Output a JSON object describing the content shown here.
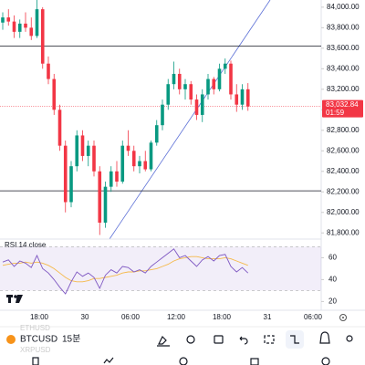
{
  "chart_data": {
    "type": "candlestick",
    "open": [
      83850,
      83900,
      83860,
      83760,
      83840,
      83800,
      83720,
      83980,
      83450,
      83300,
      83000,
      82650,
      82100,
      82450,
      82750,
      82550,
      82650,
      82400,
      81900,
      82250,
      82400,
      82300,
      82650,
      82600,
      82450,
      82500,
      82420,
      82680,
      82850,
      83050,
      83250,
      83350,
      83200,
      83250,
      83100,
      82950,
      83150,
      83300,
      83200,
      83400,
      83450,
      83150,
      83050,
      83200
    ],
    "high": [
      83950,
      83980,
      83920,
      83880,
      83950,
      83900,
      84070,
      84000,
      83520,
      83350,
      83050,
      82700,
      82500,
      82800,
      82800,
      82700,
      82700,
      82450,
      82300,
      82450,
      82500,
      82700,
      82800,
      82650,
      82550,
      82600,
      82700,
      82900,
      83100,
      83300,
      83470,
      83400,
      83300,
      83280,
      83150,
      83200,
      83350,
      83320,
      83450,
      83500,
      83480,
      83250,
      83250,
      83260
    ],
    "low": [
      83780,
      83820,
      83700,
      83700,
      83760,
      83680,
      83700,
      83400,
      83250,
      82950,
      82600,
      82000,
      82050,
      82400,
      82500,
      82450,
      82350,
      81780,
      81850,
      82200,
      82250,
      82280,
      82550,
      82400,
      82380,
      82400,
      82400,
      82650,
      82800,
      83000,
      83200,
      83150,
      83100,
      83050,
      82900,
      82880,
      83100,
      83150,
      83180,
      83350,
      83100,
      82980,
      83000,
      82990
    ],
    "close": [
      83900,
      83860,
      83760,
      83840,
      83800,
      83720,
      83980,
      83450,
      83300,
      83000,
      82650,
      82100,
      82450,
      82750,
      82550,
      82650,
      82400,
      81900,
      82250,
      82400,
      82300,
      82650,
      82600,
      82450,
      82500,
      82420,
      82680,
      82850,
      83050,
      83250,
      83350,
      83200,
      83250,
      83100,
      82950,
      83150,
      83300,
      83200,
      83400,
      83450,
      83150,
      83050,
      83200,
      83032.84
    ],
    "up_color": "#089981",
    "down_color": "#f23645",
    "ylim": [
      81740,
      84070
    ],
    "yticks": [
      {
        "value": 84000,
        "label": "84,000.00"
      },
      {
        "value": 83800,
        "label": "83,800.00"
      },
      {
        "value": 83600,
        "label": "83,600.00"
      },
      {
        "value": 83400,
        "label": "83,400.00"
      },
      {
        "value": 83200,
        "label": "83,200.00"
      },
      {
        "value": 83000,
        "label": "83,000.00"
      },
      {
        "value": 82800,
        "label": "82,800.00"
      },
      {
        "value": 82600,
        "label": "82,600.00"
      },
      {
        "value": 82400,
        "label": "82,400.00"
      },
      {
        "value": 82200,
        "label": "82,200.00"
      },
      {
        "value": 82000,
        "label": "82,000.00"
      },
      {
        "value": 81800,
        "label": "81,800.00"
      }
    ],
    "levels": [
      83620,
      82210
    ],
    "last_price": {
      "value": 83032.84,
      "label": "83,032.84"
    },
    "countdown": "01:59",
    "x_labels": [
      "18:00",
      "30",
      "06:00",
      "12:00",
      "18:00",
      "31",
      "06:00"
    ],
    "rsi": {
      "title": "RSI 14 close",
      "color": "#7e57c2",
      "ma_color": "#f5b94a",
      "values": [
        56,
        58,
        52,
        57,
        55,
        51,
        62,
        50,
        46,
        40,
        33,
        27,
        38,
        47,
        43,
        46,
        42,
        32,
        44,
        49,
        46,
        52,
        51,
        47,
        49,
        46,
        52,
        56,
        60,
        64,
        68,
        60,
        62,
        57,
        52,
        58,
        61,
        57,
        62,
        63,
        52,
        47,
        51,
        46
      ],
      "ma": [
        53,
        54,
        55,
        55,
        56,
        55,
        56,
        55,
        53,
        50,
        46,
        42,
        39,
        38,
        38,
        39,
        41,
        41,
        42,
        43,
        44,
        46,
        47,
        47,
        48,
        48,
        49,
        50,
        52,
        54,
        57,
        59,
        60,
        61,
        61,
        60,
        59,
        59,
        59,
        60,
        59,
        57,
        55,
        53
      ],
      "band": [
        30,
        70
      ],
      "ylim": [
        12,
        77
      ],
      "yticks": [
        60,
        40,
        20
      ]
    }
  },
  "toolbar": {
    "symbol": "BTCUSD",
    "symbol_above": "ETHUSD",
    "symbol_below": "XRPUSD",
    "interval": "15분"
  }
}
